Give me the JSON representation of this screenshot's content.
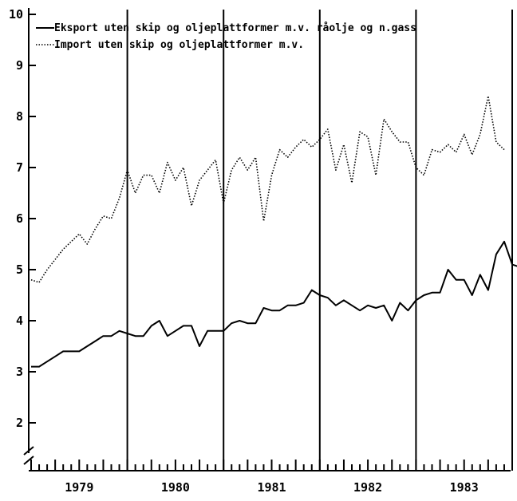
{
  "chart_data": {
    "type": "line",
    "title": "",
    "xlabel": "",
    "ylabel": "",
    "ylim": [
      1,
      10
    ],
    "y_ticks": [
      "2",
      "3",
      "4",
      "5",
      "6",
      "7",
      "8",
      "9",
      "10"
    ],
    "axis_break": true,
    "x_labels": [
      "1979",
      "1980",
      "1981",
      "1982",
      "1983"
    ],
    "x_start": 1979.0,
    "months_per_year": 12,
    "legend_position": "top",
    "series": [
      {
        "name": "Eksport uten skip og oljeplattformer m.v. råolje og n.gass",
        "style": "solid",
        "color": "#000000",
        "values": [
          3.1,
          3.1,
          3.2,
          3.3,
          3.4,
          3.4,
          3.4,
          3.5,
          3.6,
          3.7,
          3.7,
          3.8,
          3.75,
          3.7,
          3.7,
          3.9,
          4.0,
          3.7,
          3.8,
          3.9,
          3.9,
          3.5,
          3.8,
          3.8,
          3.8,
          3.95,
          4.0,
          3.95,
          3.95,
          4.25,
          4.2,
          4.2,
          4.3,
          4.3,
          4.35,
          4.6,
          4.5,
          4.45,
          4.3,
          4.4,
          4.3,
          4.2,
          4.3,
          4.25,
          4.3,
          4.0,
          4.35,
          4.2,
          4.4,
          4.5,
          4.55,
          4.55,
          5.0,
          4.8,
          4.8,
          4.5,
          4.9,
          4.6,
          5.3,
          5.55,
          5.1,
          5.05
        ]
      },
      {
        "name": "Import uten skip og oljeplattformer m.v.",
        "style": "dotted",
        "color": "#000000",
        "values": [
          4.8,
          4.75,
          5.0,
          5.2,
          5.4,
          5.55,
          5.7,
          5.5,
          5.8,
          6.05,
          6.0,
          6.4,
          6.95,
          6.5,
          6.85,
          6.85,
          6.5,
          7.1,
          6.75,
          7.0,
          6.25,
          6.75,
          6.95,
          7.15,
          6.3,
          6.95,
          7.2,
          6.95,
          7.2,
          5.95,
          6.85,
          7.35,
          7.2,
          7.4,
          7.55,
          7.4,
          7.55,
          7.75,
          6.95,
          7.45,
          6.7,
          7.7,
          7.6,
          6.85,
          7.95,
          7.7,
          7.5,
          7.5,
          7.0,
          6.85,
          7.35,
          7.3,
          7.45,
          7.3,
          7.65,
          7.25,
          7.65,
          8.4,
          7.5,
          7.35
        ]
      }
    ]
  }
}
